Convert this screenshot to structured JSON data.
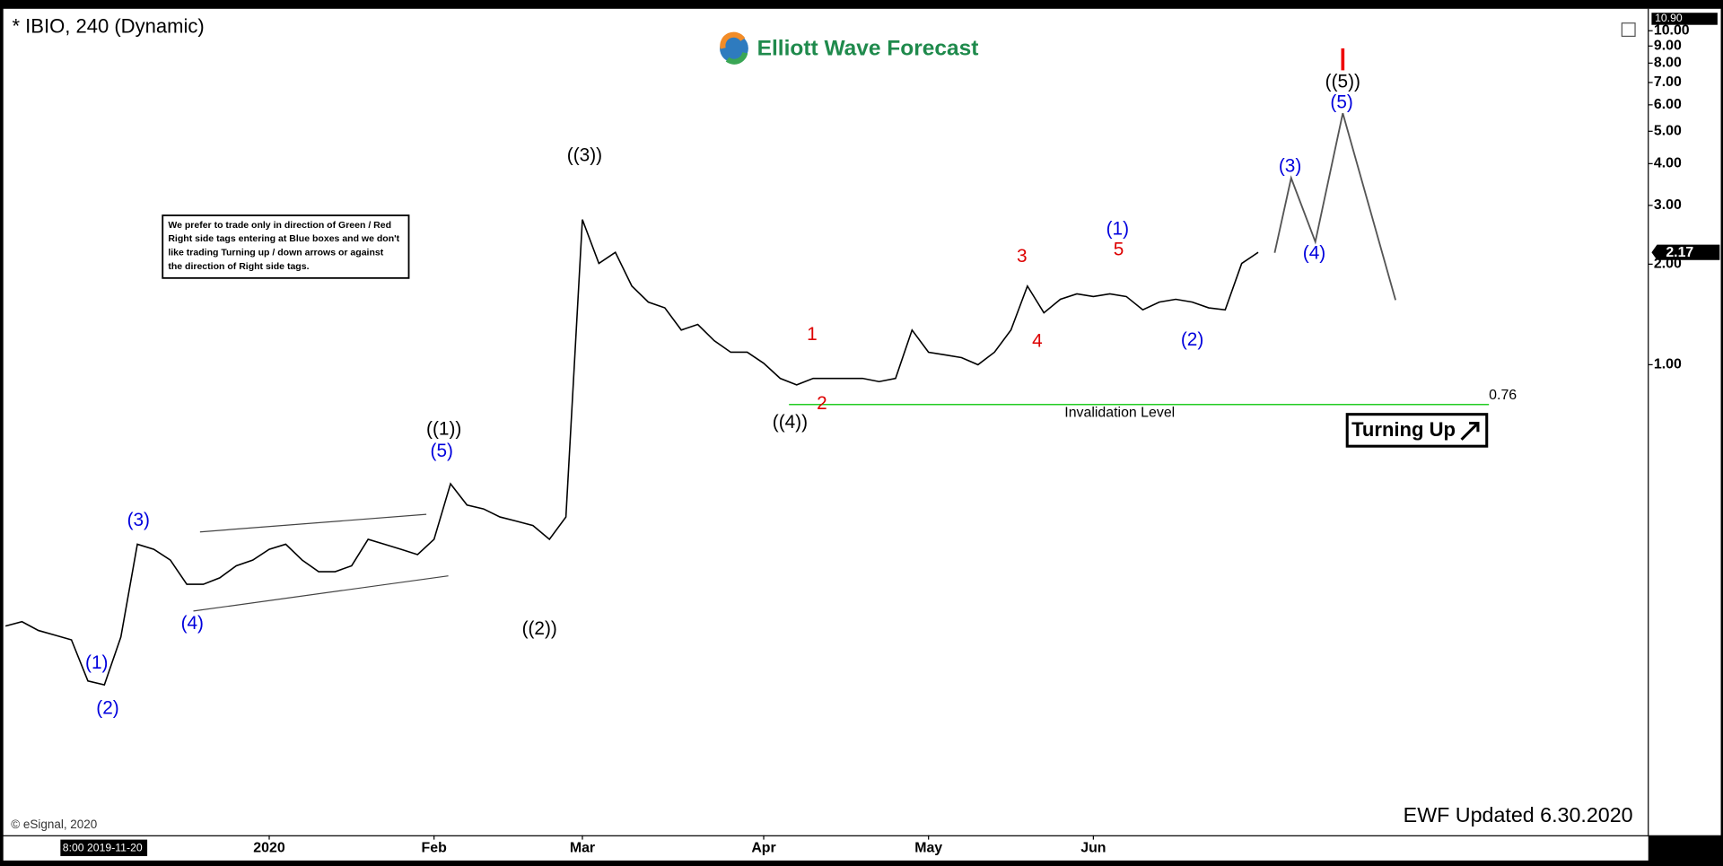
{
  "header": {
    "symbol": "* IBIO, 240 (Dynamic)",
    "brand": "Elliott Wave Forecast",
    "copyright": "© eSignal, 2020",
    "updated": "EWF Updated 6.30.2020",
    "start_time": "8:00 2019-11-20",
    "signal": "Turning Up"
  },
  "notice": [
    "We prefer to trade only in direction of Green / Red",
    "Right side tags entering at Blue boxes and we don't",
    "like trading Turning up / down arrows or against",
    "the direction of Right side tags."
  ],
  "chart_data": {
    "type": "line",
    "color": "#000000",
    "log_scale": true,
    "categories": [
      null,
      null,
      null,
      null,
      null,
      null,
      null,
      null,
      null,
      null,
      null,
      null,
      null,
      null,
      null,
      null,
      "2020",
      null,
      null,
      null,
      null,
      null,
      null,
      null,
      null,
      null,
      "Feb",
      null,
      null,
      null,
      null,
      null,
      null,
      null,
      null,
      "Mar",
      null,
      null,
      null,
      null,
      null,
      null,
      null,
      null,
      null,
      null,
      "Apr",
      null,
      null,
      null,
      null,
      null,
      null,
      null,
      null,
      null,
      "May",
      null,
      null,
      null,
      null,
      null,
      null,
      null,
      null,
      null,
      "Jun",
      null,
      null,
      null,
      null,
      null,
      null,
      null,
      null,
      null,
      null,
      null,
      null,
      null,
      null,
      null,
      null,
      null,
      null,
      null,
      null,
      null,
      null,
      null,
      null,
      null,
      null,
      null,
      null,
      null,
      null,
      null,
      null,
      null
    ],
    "values": [
      0.165,
      0.17,
      0.16,
      0.155,
      0.15,
      0.113,
      0.11,
      0.153,
      0.29,
      0.28,
      0.26,
      0.22,
      0.22,
      0.23,
      0.25,
      0.26,
      0.28,
      0.29,
      0.26,
      0.24,
      0.24,
      0.25,
      0.3,
      0.29,
      0.28,
      0.27,
      0.3,
      0.44,
      0.38,
      0.37,
      0.35,
      0.34,
      0.33,
      0.3,
      0.35,
      2.72,
      2.01,
      2.17,
      1.72,
      1.54,
      1.48,
      1.27,
      1.32,
      1.18,
      1.09,
      1.09,
      1.01,
      0.91,
      0.87,
      0.91,
      0.91,
      0.91,
      0.91,
      0.89,
      0.91,
      1.27,
      1.09,
      1.07,
      1.05,
      1.0,
      1.09,
      1.27,
      1.72,
      1.43,
      1.57,
      1.63,
      1.6,
      1.63,
      1.6,
      1.46,
      1.54,
      1.57,
      1.54,
      1.48,
      1.46,
      2.01,
      2.17,
      null,
      null,
      null,
      null,
      null,
      null,
      null,
      null,
      null,
      null,
      null,
      null,
      null,
      null,
      null,
      null,
      null,
      null,
      null,
      null,
      null,
      null,
      null
    ],
    "ylim": [
      0.039,
      11.46
    ],
    "yticks": [
      {
        "value": 10,
        "label": "10.00"
      },
      {
        "value": 9,
        "label": "9.00"
      },
      {
        "value": 8,
        "label": "8.00"
      },
      {
        "value": 7,
        "label": "7.00"
      },
      {
        "value": 6,
        "label": "6.00"
      },
      {
        "value": 5,
        "label": "5.00"
      },
      {
        "value": 4,
        "label": "4.00"
      },
      {
        "value": 3,
        "label": "3.00"
      },
      {
        "value": 2,
        "label": "2.00"
      },
      {
        "value": 1,
        "label": "1.00"
      }
    ],
    "high_marker": {
      "value": 10.9,
      "label": "10.90"
    },
    "invalidation_level": 0.76,
    "invalidation_label": "Invalidation Level",
    "annotations": [
      "((1))",
      "(5)",
      "(3)",
      "(4)",
      "(1)",
      "(2)",
      "((2))",
      "((3))",
      "((4))",
      "1",
      "2",
      "3",
      "4",
      "5",
      "(1)",
      "(2)",
      "(3)",
      "(4)",
      "(5)",
      "((5))"
    ]
  }
}
